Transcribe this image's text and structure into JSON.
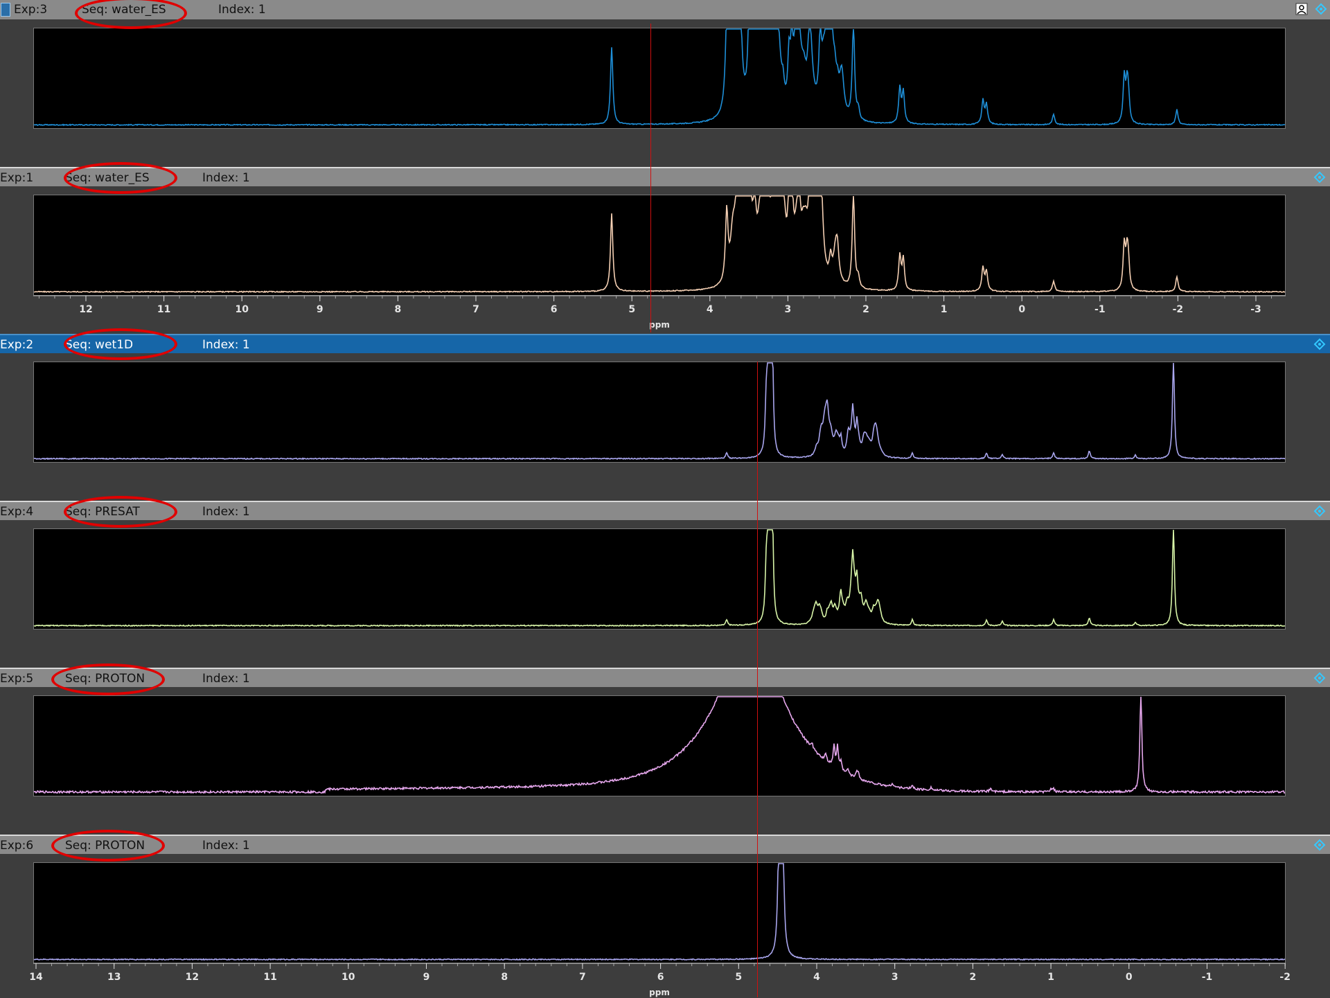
{
  "panels": [
    {
      "exp": "Exp:3",
      "seq": "Seq: water_ES",
      "index": "Index:  1",
      "active": false,
      "color": "#1e8fd8"
    },
    {
      "exp": "Exp:1",
      "seq": "Seq: water_ES",
      "index": "Index:  1",
      "active": false,
      "color": "#f5d0b4"
    },
    {
      "exp": "Exp:2",
      "seq": "Seq: wet1D",
      "index": "Index:  1",
      "active": true,
      "color": "#a9a6ee"
    },
    {
      "exp": "Exp:4",
      "seq": "Seq: PRESAT",
      "index": "Index:  1",
      "active": false,
      "color": "#d8f5a8"
    },
    {
      "exp": "Exp:5",
      "seq": "Seq: PROTON",
      "index": "Index:  1",
      "active": false,
      "color": "#e7a8ee"
    },
    {
      "exp": "Exp:6",
      "seq": "Seq: PROTON",
      "index": "Index:  1",
      "active": false,
      "color": "#a9a6ee"
    }
  ],
  "axis_top": {
    "ticks": [
      "12",
      "11",
      "10",
      "9",
      "8",
      "7",
      "6",
      "5",
      "4",
      "3",
      "2",
      "1",
      "0",
      "-1",
      "-2",
      "-3"
    ],
    "unit": "ppm"
  },
  "axis_bottom": {
    "ticks": [
      "14",
      "13",
      "12",
      "11",
      "10",
      "9",
      "8",
      "7",
      "6",
      "5",
      "4",
      "3",
      "2",
      "1",
      "0",
      "-1",
      "-2"
    ],
    "unit": "ppm"
  },
  "colors": {
    "cursor": "#d01010",
    "highlight": "#e00000",
    "active_header": "#1666a8"
  }
}
